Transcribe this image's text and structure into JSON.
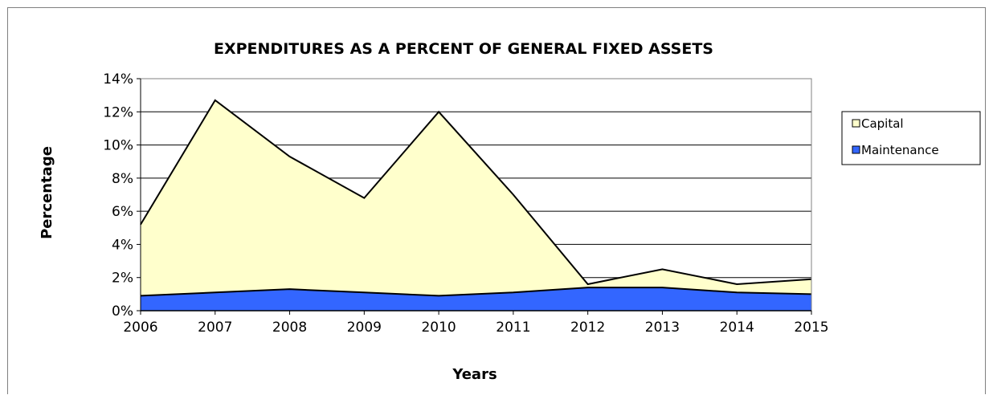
{
  "chart_data": {
    "type": "area",
    "title": "EXPENDITURES AS A PERCENT OF GENERAL FIXED ASSETS",
    "xlabel": "Years",
    "ylabel": "Percentage",
    "categories": [
      "2006",
      "2007",
      "2008",
      "2009",
      "2010",
      "2011",
      "2012",
      "2013",
      "2014",
      "2015"
    ],
    "ylim": [
      0,
      14
    ],
    "yticks": [
      0,
      2,
      4,
      6,
      8,
      10,
      12,
      14
    ],
    "ytick_labels": [
      "0%",
      "2%",
      "4%",
      "6%",
      "8%",
      "10%",
      "12%",
      "14%"
    ],
    "stacking": "overlapping",
    "grid": true,
    "legend_position": "right",
    "series": [
      {
        "name": "Capital",
        "values": [
          5.2,
          12.7,
          9.3,
          6.8,
          12.0,
          7.0,
          1.6,
          2.5,
          1.6,
          1.9
        ],
        "color": "#FFFFCC"
      },
      {
        "name": "Maintenance",
        "values": [
          0.9,
          1.1,
          1.3,
          1.1,
          0.9,
          1.1,
          1.4,
          1.4,
          1.1,
          1.0
        ],
        "color": "#3366FF"
      }
    ]
  }
}
